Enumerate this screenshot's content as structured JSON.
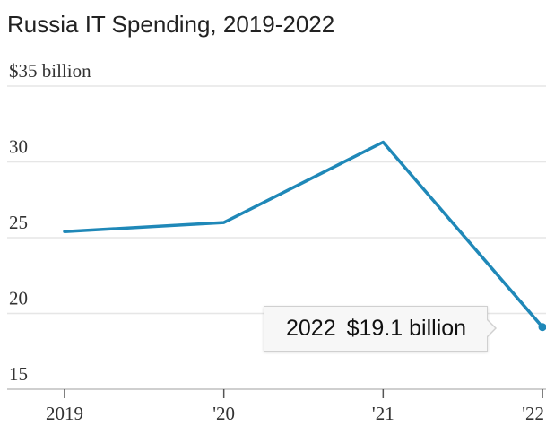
{
  "title": "Russia IT Spending, 2019-2022",
  "colors": {
    "series": "#1f88b8",
    "gridline": "#e6e6e6"
  },
  "tooltip": {
    "year": "2022",
    "value": "$19.1 billion"
  },
  "chart_data": {
    "type": "line",
    "title": "Russia IT Spending, 2019-2022",
    "x": [
      2019,
      2020,
      2021,
      2022
    ],
    "x_tick_labels": [
      "2019",
      "'20",
      "'21",
      "'22"
    ],
    "y_tick_values": [
      15,
      20,
      25,
      30,
      35
    ],
    "y_tick_labels": [
      "15",
      "20",
      "25",
      "30",
      "$35 billion"
    ],
    "ylim": [
      15,
      35
    ],
    "grid": true,
    "series": [
      {
        "values": [
          25.4,
          26.0,
          31.3,
          19.1
        ]
      }
    ],
    "annotation": {
      "x": 2022,
      "y": 19.1,
      "label": "2022  $19.1 billion"
    }
  }
}
